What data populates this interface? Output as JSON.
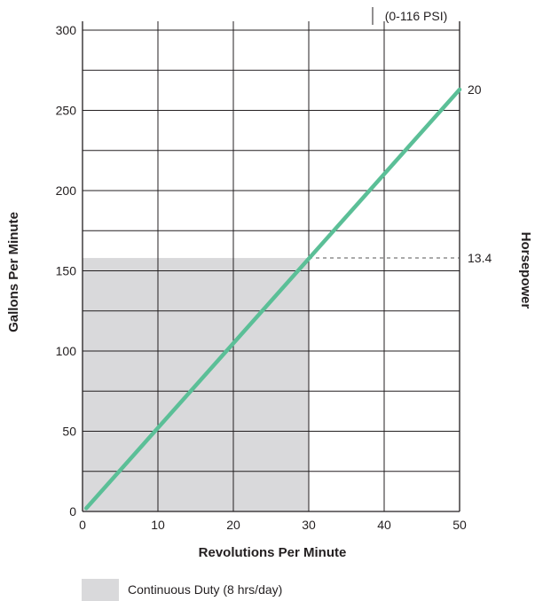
{
  "chart_data": {
    "type": "line",
    "annotation": "(0-116 PSI)",
    "xlabel": "Revolutions Per Minute",
    "ylabel": "Gallons Per Minute",
    "y2label": "Horsepower",
    "xlim": [
      0,
      50
    ],
    "ylim": [
      0,
      300
    ],
    "xticks": [
      "0",
      "10",
      "20",
      "30",
      "40",
      "50"
    ],
    "xtick_values": [
      0,
      10,
      20,
      30,
      40,
      50
    ],
    "yticks": [
      "0",
      "50",
      "100",
      "150",
      "200",
      "250",
      "300"
    ],
    "ytick_values": [
      0,
      50,
      100,
      150,
      200,
      250,
      300
    ],
    "grid": true,
    "series": [
      {
        "x": [
          0.5,
          50
        ],
        "y": [
          2,
          263
        ],
        "color": "#5bbf97"
      }
    ],
    "horsepower_labels": [
      {
        "label": "20",
        "y": 263
      },
      {
        "label": "13.4",
        "y": 158
      }
    ],
    "shaded_region": {
      "x": [
        0,
        30
      ],
      "y": [
        0,
        158
      ],
      "color": "#d9d9db"
    },
    "reference_line": {
      "from_x": 30,
      "to_x": 50,
      "y": 158
    },
    "legend": {
      "label": "Continuous Duty (8 hrs/day)",
      "color": "#d9d9db",
      "position": "bottom-left"
    }
  }
}
